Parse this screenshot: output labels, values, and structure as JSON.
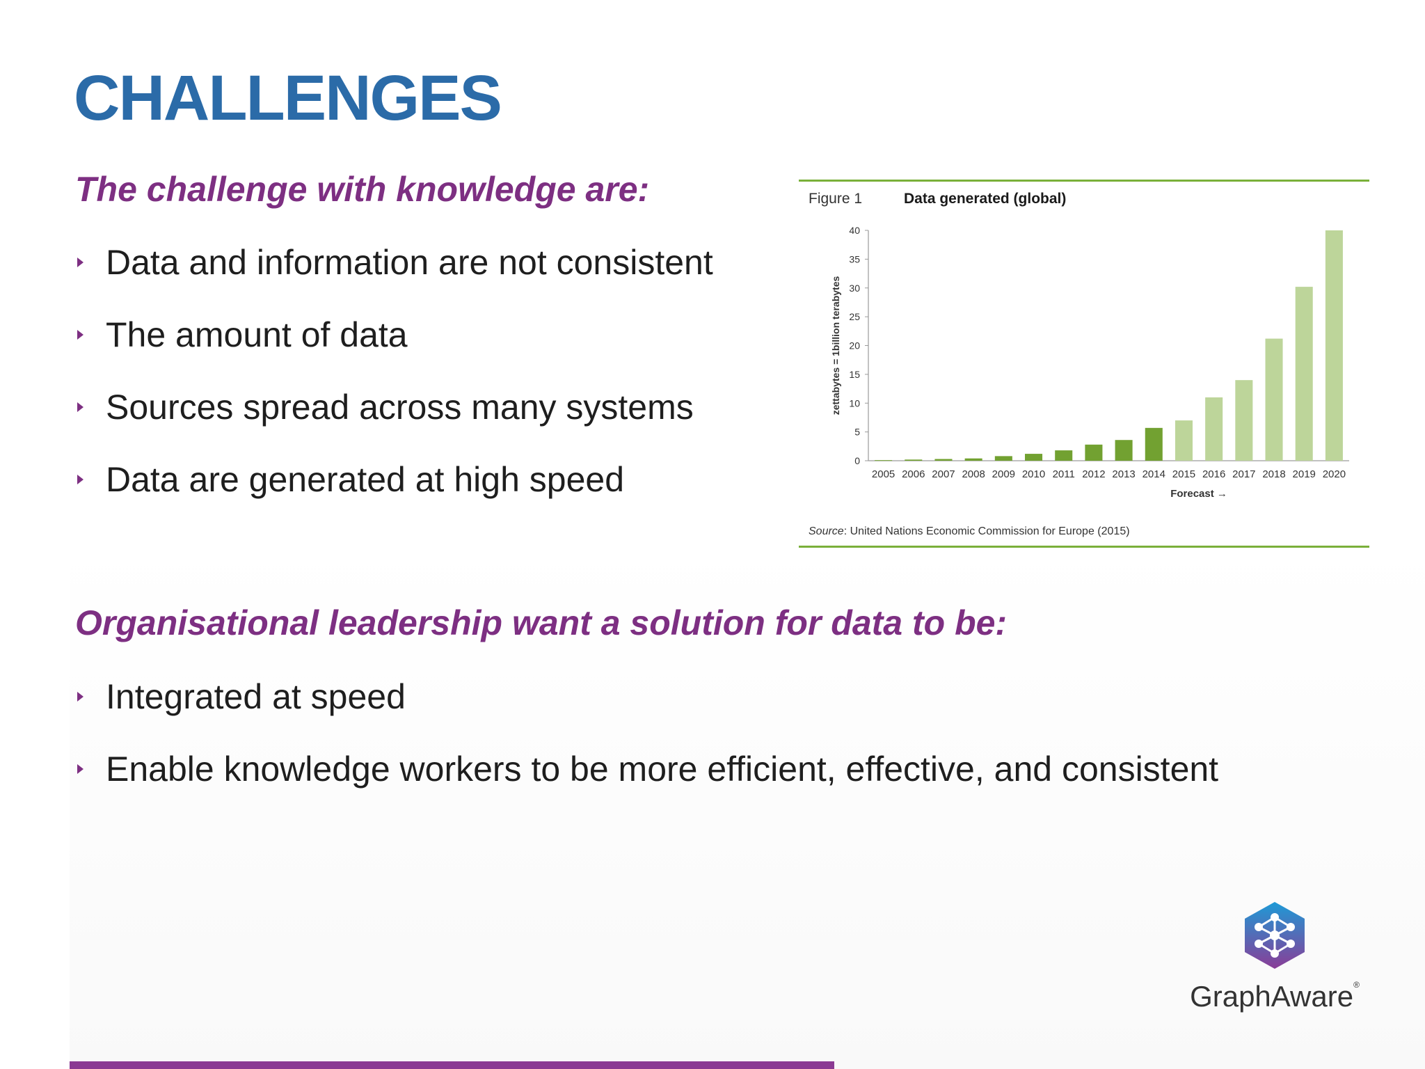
{
  "slide": {
    "title": "CHALLENGES",
    "section1": {
      "heading": "The challenge with knowledge are:",
      "bullets": [
        "Data and information are not consistent",
        "The amount of data",
        "Sources spread across many systems",
        "Data are generated at high speed"
      ]
    },
    "section2": {
      "heading": "Organisational leadership want a solution for data to be:",
      "bullets": [
        "Integrated at speed",
        "Enable knowledge workers to be more efficient, effective, and consistent"
      ]
    }
  },
  "figure": {
    "label": "Figure 1",
    "title": "Data generated (global)",
    "source_label": "Source",
    "source_text": ": United Nations Economic Commission for Europe (2015)"
  },
  "logo": {
    "icon": "graphaware-hexagon-icon",
    "text": "GraphAware",
    "registered": "®"
  },
  "colors": {
    "title": "#2b6ba8",
    "accent_purple": "#7d2f82",
    "historic_bar": "#72a131",
    "forecast_bar": "#bdd59a",
    "figure_rule": "#7ab03a"
  },
  "chart_data": {
    "type": "bar",
    "title": "Data generated (global)",
    "ylabel": "zettabytes = 1billion terabytes",
    "xlabel": "Forecast →",
    "ylim": [
      0,
      40
    ],
    "yticks": [
      0,
      5,
      10,
      15,
      20,
      25,
      30,
      35,
      40
    ],
    "categories": [
      "2005",
      "2006",
      "2007",
      "2008",
      "2009",
      "2010",
      "2011",
      "2012",
      "2013",
      "2014",
      "2015",
      "2016",
      "2017",
      "2018",
      "2019",
      "2020"
    ],
    "values": [
      0.1,
      0.2,
      0.3,
      0.4,
      0.8,
      1.2,
      1.8,
      2.8,
      3.6,
      5.7,
      7.0,
      11.0,
      14.0,
      21.2,
      30.2,
      40.0
    ],
    "forecast_from": "2015",
    "grid": false
  }
}
